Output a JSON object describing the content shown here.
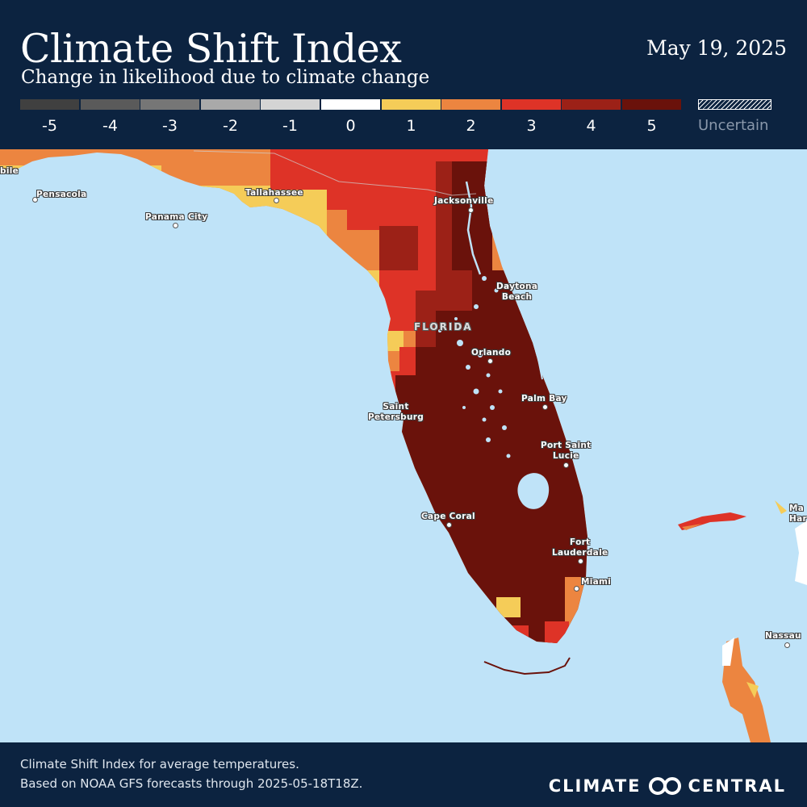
{
  "header": {
    "title": "Climate Shift Index",
    "subtitle": "Change in likelihood due to climate change",
    "date": "May 19, 2025"
  },
  "legend": {
    "items": [
      {
        "label": "-5",
        "color": "#404040"
      },
      {
        "label": "-4",
        "color": "#5a5a5a"
      },
      {
        "label": "-3",
        "color": "#767676"
      },
      {
        "label": "-2",
        "color": "#a9a9a9"
      },
      {
        "label": "-1",
        "color": "#d4d4d4"
      },
      {
        "label": "0",
        "color": "#ffffff"
      },
      {
        "label": "1",
        "color": "#f5cc58"
      },
      {
        "label": "2",
        "color": "#ec8540"
      },
      {
        "label": "3",
        "color": "#de3327"
      },
      {
        "label": "4",
        "color": "#9c2117"
      },
      {
        "label": "5",
        "color": "#6a120b"
      }
    ],
    "uncertain_label": "Uncertain"
  },
  "map": {
    "state_label": "FLORIDA",
    "cities": [
      {
        "name": "bile"
      },
      {
        "name": "Pensacola"
      },
      {
        "name": "Panama City"
      },
      {
        "name": "Tallahassee"
      },
      {
        "name": "Jacksonville"
      },
      {
        "name": "Daytona\nBeach"
      },
      {
        "name": "Orlando"
      },
      {
        "name": "Palm Bay"
      },
      {
        "name": "Saint\nPetersburg"
      },
      {
        "name": "Port Saint\nLucie"
      },
      {
        "name": "Cape Coral"
      },
      {
        "name": "Fort\nLauderdale"
      },
      {
        "name": "Miami"
      },
      {
        "name": "Ma\nHar"
      },
      {
        "name": "Nassau"
      }
    ],
    "water_color": "#bfe3f8"
  },
  "footer": {
    "line1": "Climate Shift Index for average temperatures.",
    "line2": "Based on NOAA GFS forecasts through 2025-05-18T18Z.",
    "brand_left": "CLIMATE",
    "brand_right": "CENTRAL"
  }
}
